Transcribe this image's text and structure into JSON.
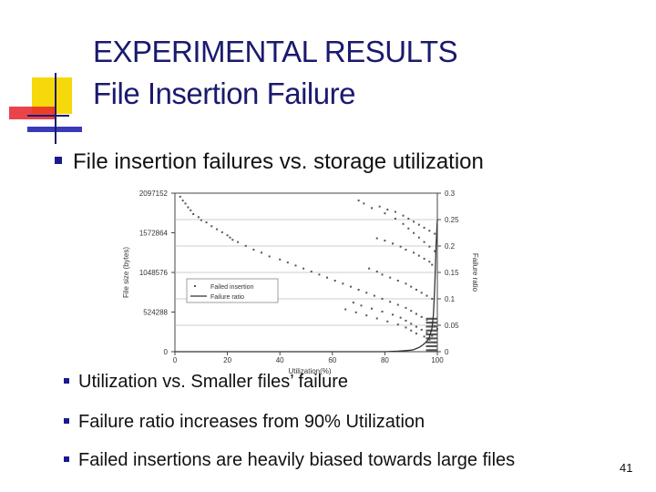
{
  "slide": {
    "title_line1": "EXPERIMENTAL RESULTS",
    "title_line2": "File Insertion Failure",
    "bullet_main": "File insertion failures vs. storage utilization",
    "sub_bullets": [
      "Utilization vs. Smaller files’ failure",
      "Failure ratio increases from 90% Utilization",
      "Failed insertions are heavily biased towards large files"
    ],
    "page_number": "41",
    "accent_color": "#1a1a6e",
    "deco_colors": {
      "yellow": "#f5d90a",
      "red": "#e8222a",
      "blue": "#3a3ab8"
    }
  },
  "chart_data": {
    "type": "scatter",
    "xlabel": "Utilization(%)",
    "ylabel": "File size (bytes)",
    "y2label": "Failure ratio",
    "x_ticks": [
      "0",
      "20",
      "40",
      "60",
      "80",
      "100"
    ],
    "y_ticks": [
      "0",
      "524288",
      "1048576",
      "1572864",
      "2097152"
    ],
    "y2_ticks": [
      "0",
      "0.05",
      "0.1",
      "0.15",
      "0.2",
      "0.25",
      "0.3"
    ],
    "xlim": [
      0,
      100
    ],
    "ylim": [
      0,
      2097152
    ],
    "y2lim": [
      0,
      0.3
    ],
    "grid": true,
    "legend_position": "middle-left",
    "series": [
      {
        "name": "Failed insertion",
        "kind": "scatter",
        "color": "#555555",
        "x": [
          2,
          3,
          4,
          5,
          6,
          7,
          9,
          10,
          12,
          14,
          16,
          18,
          20,
          21,
          22,
          24,
          27,
          30,
          33,
          36,
          40,
          43,
          46,
          49,
          52,
          55,
          58,
          61,
          64,
          67,
          70,
          73,
          76,
          79,
          82,
          85,
          88,
          90,
          92,
          94,
          96,
          98,
          99,
          100,
          78,
          81,
          84,
          87,
          89,
          91,
          93,
          95,
          97,
          99,
          77,
          80,
          83,
          86,
          88,
          91,
          93,
          95,
          97,
          98,
          74,
          77,
          79,
          82,
          85,
          88,
          90,
          92,
          94,
          96,
          98,
          70,
          72,
          75,
          80,
          84,
          87,
          89,
          91,
          93,
          95,
          97,
          99,
          68,
          71,
          75,
          79,
          83,
          86,
          88,
          90,
          92,
          94,
          96,
          98,
          65,
          69,
          73,
          77,
          81,
          85,
          88,
          90,
          92,
          95,
          97,
          99
        ],
        "y": [
          2050000,
          2000000,
          1960000,
          1910000,
          1870000,
          1820000,
          1780000,
          1740000,
          1710000,
          1660000,
          1620000,
          1580000,
          1540000,
          1510000,
          1480000,
          1450000,
          1400000,
          1350000,
          1310000,
          1260000,
          1220000,
          1180000,
          1140000,
          1100000,
          1060000,
          1020000,
          980000,
          940000,
          900000,
          860000,
          820000,
          780000,
          740000,
          700000,
          660000,
          620000,
          580000,
          540000,
          500000,
          460000,
          420000,
          380000,
          340000,
          300000,
          1920000,
          1880000,
          1850000,
          1800000,
          1760000,
          1720000,
          1680000,
          1640000,
          1600000,
          1560000,
          1500000,
          1470000,
          1430000,
          1390000,
          1350000,
          1310000,
          1270000,
          1230000,
          1190000,
          1150000,
          1100000,
          1060000,
          1020000,
          980000,
          940000,
          900000,
          860000,
          820000,
          780000,
          740000,
          700000,
          2000000,
          1960000,
          1900000,
          1830000,
          1760000,
          1690000,
          1630000,
          1570000,
          1510000,
          1450000,
          1390000,
          1330000,
          650000,
          610000,
          570000,
          530000,
          490000,
          450000,
          410000,
          370000,
          330000,
          290000,
          250000,
          210000,
          560000,
          520000,
          480000,
          440000,
          400000,
          360000,
          320000,
          280000,
          240000,
          200000,
          160000,
          120000
        ]
      },
      {
        "name": "Failure ratio",
        "kind": "line",
        "color": "#333333",
        "x": [
          0,
          80,
          85,
          88,
          90,
          91,
          92,
          93,
          94,
          95,
          96,
          97,
          98,
          98.5,
          99,
          99.5,
          100
        ],
        "y": [
          0,
          0,
          0.001,
          0.002,
          0.003,
          0.004,
          0.006,
          0.008,
          0.011,
          0.015,
          0.02,
          0.028,
          0.045,
          0.07,
          0.12,
          0.2,
          0.25
        ]
      }
    ]
  }
}
